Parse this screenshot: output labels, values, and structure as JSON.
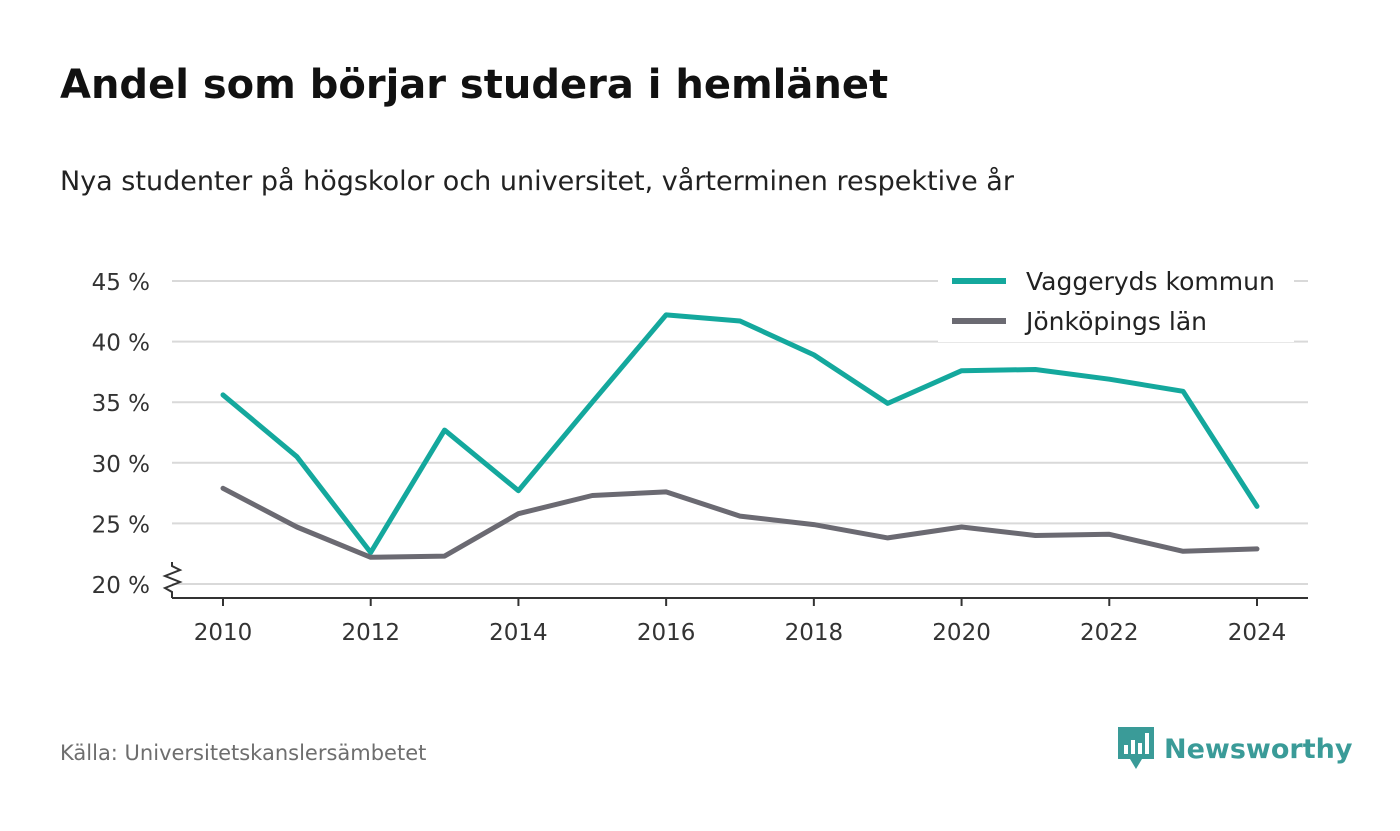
{
  "title": "Andel som börjar studera i hemlänet",
  "subtitle": "Nya studenter på högskolor och universitet, vårterminen respektive år",
  "source": "Källa: Universitetskanslersämbetet",
  "brand": {
    "name": "Newsworthy",
    "icon": "newsworthy-logo-icon",
    "color": "#3a9b98"
  },
  "chart_data": {
    "type": "line",
    "x": [
      2010,
      2011,
      2012,
      2013,
      2014,
      2015,
      2016,
      2017,
      2018,
      2019,
      2020,
      2021,
      2022,
      2023,
      2024
    ],
    "x_ticks": [
      2010,
      2012,
      2014,
      2016,
      2018,
      2020,
      2022,
      2024
    ],
    "y_ticks": [
      20,
      25,
      30,
      35,
      40,
      45
    ],
    "y_tick_labels": [
      "20 %",
      "25 %",
      "30 %",
      "35 %",
      "40 %",
      "45 %"
    ],
    "ylim": [
      20,
      45
    ],
    "y_axis_break": true,
    "grid": true,
    "legend_position": "top-right",
    "series": [
      {
        "name": "Vaggeryds kommun",
        "color": "#14a89d",
        "values": [
          35.6,
          30.5,
          22.6,
          32.7,
          27.7,
          35.0,
          42.2,
          41.7,
          38.9,
          34.9,
          37.6,
          37.7,
          36.9,
          35.9,
          26.4
        ]
      },
      {
        "name": "Jönköpings län",
        "color": "#6b6a72",
        "values": [
          27.9,
          24.7,
          22.2,
          22.3,
          25.8,
          27.3,
          27.6,
          25.6,
          24.9,
          23.8,
          24.7,
          24.0,
          24.1,
          22.7,
          22.9
        ]
      }
    ]
  }
}
